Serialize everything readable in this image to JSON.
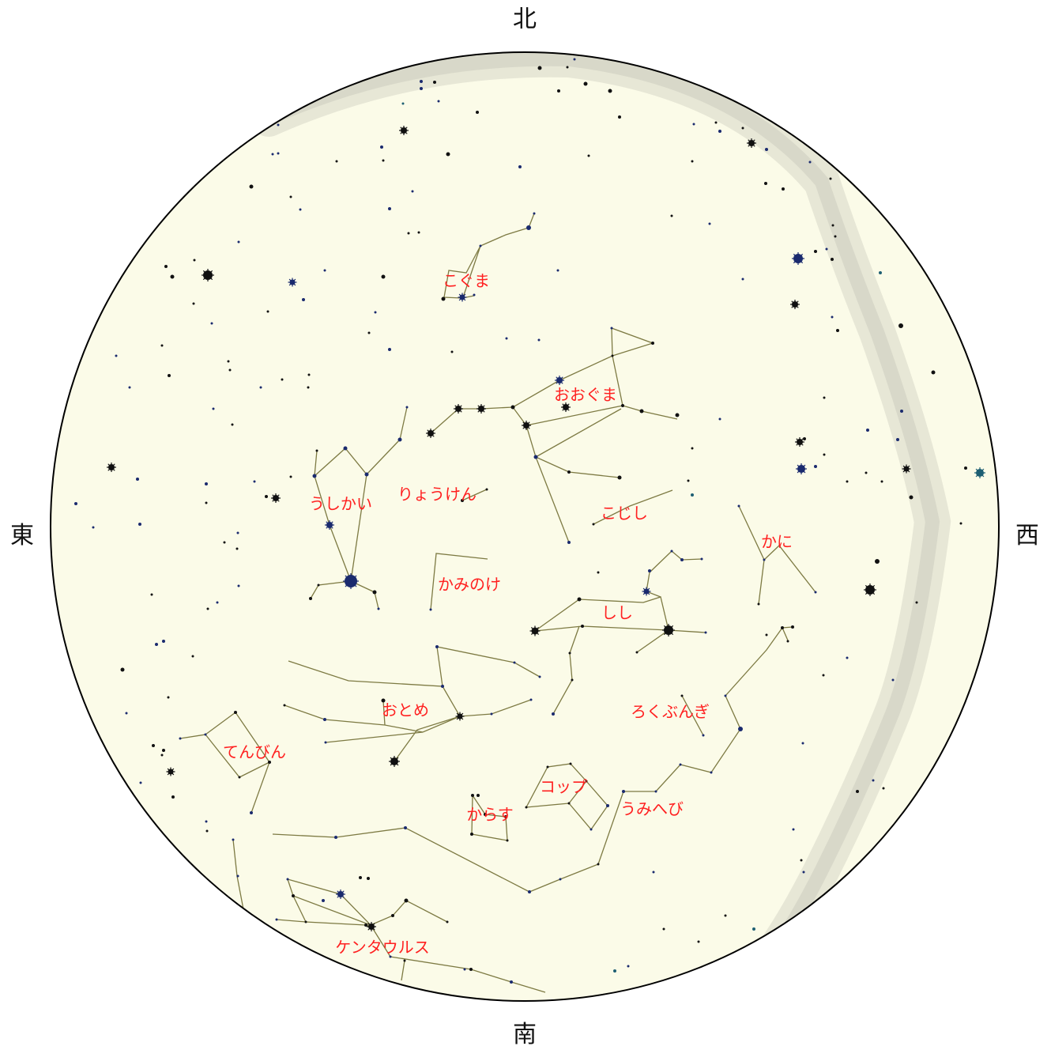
{
  "directions": {
    "north": "北",
    "south": "南",
    "east": "東",
    "west": "西"
  },
  "constellations": {
    "ursa_minor": "こぐま",
    "ursa_major": "おおぐま",
    "canes_venatici": "りょうけん",
    "bootes": "うしかい",
    "leo_minor": "こじし",
    "cancer": "かに",
    "coma_berenices": "かみのけ",
    "leo": "しし",
    "virgo": "おとめ",
    "sextans": "ろくぶんぎ",
    "libra": "てんびん",
    "crater": "コップ",
    "corvus": "からす",
    "hydra": "うみへび",
    "centaurus": "ケンタウルス"
  },
  "colors": {
    "sky": "#fbfbe8",
    "horizon_band": "#d9d9cc",
    "constellation_line": "#7d7a43",
    "label": "#ff2020",
    "star_dark": "#111111",
    "star_blue": "#1a2a6e",
    "star_teal": "#1e5f73",
    "circle_border": "#000000"
  }
}
